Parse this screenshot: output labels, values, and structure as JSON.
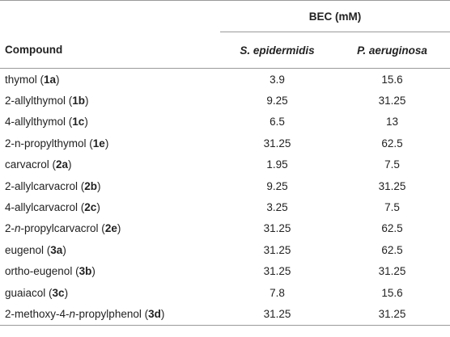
{
  "header": {
    "group_label": "BEC (mM)",
    "compound_label": "Compound",
    "org1": "S. epidermidis",
    "org2": "P. aeruginosa"
  },
  "rows": [
    {
      "segments": [
        {
          "t": "thymol (",
          "s": ""
        },
        {
          "t": "1a",
          "s": "b"
        },
        {
          "t": ")",
          "s": ""
        }
      ],
      "v1": "3.9",
      "v2": "15.6"
    },
    {
      "segments": [
        {
          "t": "2-allylthymol (",
          "s": ""
        },
        {
          "t": "1b",
          "s": "b"
        },
        {
          "t": ")",
          "s": ""
        }
      ],
      "v1": "9.25",
      "v2": "31.25"
    },
    {
      "segments": [
        {
          "t": "4-allylthymol (",
          "s": ""
        },
        {
          "t": "1c",
          "s": "b"
        },
        {
          "t": ")",
          "s": ""
        }
      ],
      "v1": "6.5",
      "v2": "13"
    },
    {
      "segments": [
        {
          "t": "2-n-propylthymol (",
          "s": ""
        },
        {
          "t": "1e",
          "s": "b"
        },
        {
          "t": ")",
          "s": ""
        }
      ],
      "v1": "31.25",
      "v2": "62.5"
    },
    {
      "segments": [
        {
          "t": "carvacrol (",
          "s": ""
        },
        {
          "t": "2a",
          "s": "b"
        },
        {
          "t": ")",
          "s": ""
        }
      ],
      "v1": "1.95",
      "v2": "7.5"
    },
    {
      "segments": [
        {
          "t": "2-allylcarvacrol (",
          "s": ""
        },
        {
          "t": "2b",
          "s": "b"
        },
        {
          "t": ")",
          "s": ""
        }
      ],
      "v1": "9.25",
      "v2": "31.25"
    },
    {
      "segments": [
        {
          "t": "4-allylcarvacrol (",
          "s": ""
        },
        {
          "t": "2c",
          "s": "b"
        },
        {
          "t": ")",
          "s": ""
        }
      ],
      "v1": "3.25",
      "v2": "7.5"
    },
    {
      "segments": [
        {
          "t": "2-",
          "s": ""
        },
        {
          "t": "n",
          "s": "i"
        },
        {
          "t": "-propylcarvacrol (",
          "s": ""
        },
        {
          "t": "2e",
          "s": "b"
        },
        {
          "t": ")",
          "s": ""
        }
      ],
      "v1": "31.25",
      "v2": "62.5"
    },
    {
      "segments": [
        {
          "t": "eugenol (",
          "s": ""
        },
        {
          "t": "3a",
          "s": "b"
        },
        {
          "t": ")",
          "s": ""
        }
      ],
      "v1": "31.25",
      "v2": "62.5"
    },
    {
      "segments": [
        {
          "t": "ortho-eugenol (",
          "s": ""
        },
        {
          "t": "3b",
          "s": "b"
        },
        {
          "t": ")",
          "s": ""
        }
      ],
      "v1": "31.25",
      "v2": "31.25"
    },
    {
      "segments": [
        {
          "t": "guaiacol (",
          "s": ""
        },
        {
          "t": "3c",
          "s": "b"
        },
        {
          "t": ")",
          "s": ""
        }
      ],
      "v1": "7.8",
      "v2": "15.6"
    },
    {
      "segments": [
        {
          "t": "2-methoxy-4-",
          "s": ""
        },
        {
          "t": "n",
          "s": "i"
        },
        {
          "t": "-propylphenol (",
          "s": ""
        },
        {
          "t": "3d",
          "s": "b"
        },
        {
          "t": ")",
          "s": ""
        }
      ],
      "v1": "31.25",
      "v2": "31.25"
    }
  ]
}
